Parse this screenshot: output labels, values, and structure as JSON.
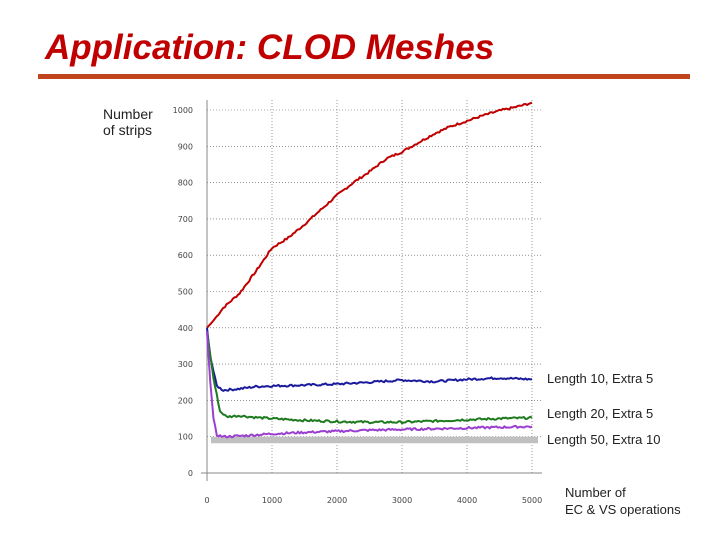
{
  "slide": {
    "title": "Application: CLOD Meshes"
  },
  "chart_data": {
    "type": "line",
    "ylabel_lines": [
      "Number",
      "of strips"
    ],
    "xlabel_lines": [
      "Number of",
      "EC & VS operations"
    ],
    "xlim": [
      0,
      5000
    ],
    "ylim": [
      0,
      1000
    ],
    "x_ticks": [
      "0",
      "1000",
      "2000",
      "3000",
      "4000",
      "5000"
    ],
    "y_ticks": [
      "0",
      "100",
      "200",
      "300",
      "400",
      "500",
      "600",
      "700",
      "800",
      "900",
      "1000"
    ],
    "grid": true,
    "series": [
      {
        "color": "#c00000",
        "x": [
          0,
          100,
          250,
          500,
          750,
          1000,
          1250,
          1500,
          1750,
          2000,
          2250,
          2500,
          2750,
          3000,
          3250,
          3500,
          3750,
          4000,
          4250,
          4500,
          4750,
          5000
        ],
        "y": [
          400,
          420,
          455,
          495,
          555,
          620,
          648,
          685,
          725,
          765,
          800,
          830,
          865,
          885,
          910,
          935,
          955,
          970,
          985,
          998,
          1008,
          1020
        ]
      },
      {
        "name": "Length 10, Extra 5",
        "color": "#1a1a9c",
        "x": [
          0,
          50,
          150,
          250,
          500,
          750,
          1000,
          1500,
          2000,
          2500,
          3000,
          3500,
          4000,
          4500,
          5000
        ],
        "y": [
          400,
          320,
          240,
          228,
          232,
          238,
          240,
          242,
          245,
          250,
          256,
          252,
          258,
          262,
          258
        ]
      },
      {
        "name": "Length 20, Extra 5",
        "color": "#1e7a1e",
        "x": [
          0,
          100,
          200,
          300,
          500,
          750,
          1000,
          1500,
          2000,
          2500,
          3000,
          3500,
          4000,
          4500,
          5000
        ],
        "y": [
          390,
          260,
          170,
          155,
          158,
          153,
          150,
          145,
          142,
          140,
          140,
          143,
          147,
          150,
          152
        ]
      },
      {
        "name": "Length 50, Extra 10",
        "color": "#9b3fd1",
        "x": [
          0,
          50,
          100,
          150,
          250,
          500,
          750,
          1000,
          1500,
          2000,
          2500,
          3000,
          3500,
          4000,
          4500,
          5000
        ],
        "y": [
          390,
          250,
          150,
          105,
          100,
          102,
          105,
          108,
          112,
          115,
          118,
          120,
          122,
          124,
          126,
          128
        ]
      }
    ],
    "band": {
      "color": "#c0c0c0",
      "y_min": 82,
      "y_max": 100
    }
  }
}
